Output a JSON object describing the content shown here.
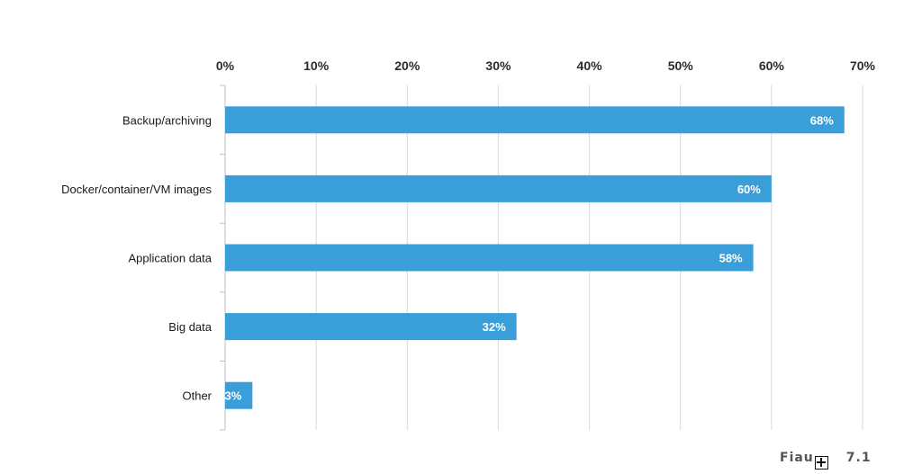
{
  "chart_data": {
    "type": "bar",
    "orientation": "horizontal",
    "categories": [
      "Backup/archiving",
      "Docker/container/VM images",
      "Application data",
      "Big data",
      "Other"
    ],
    "values": [
      68,
      60,
      58,
      32,
      3
    ],
    "value_labels": [
      "68%",
      "60%",
      "58%",
      "32%",
      "3%"
    ],
    "xlim": [
      0,
      70
    ],
    "x_ticks": [
      "0%",
      "10%",
      "20%",
      "30%",
      "40%",
      "50%",
      "60%",
      "70%"
    ],
    "x_axis_position": "top",
    "grid": true,
    "bar_color": "#3a9fd8",
    "grid_color": "#d9d9d9"
  },
  "caption": {
    "prefix": "Fiau",
    "suffix": "7.1"
  }
}
